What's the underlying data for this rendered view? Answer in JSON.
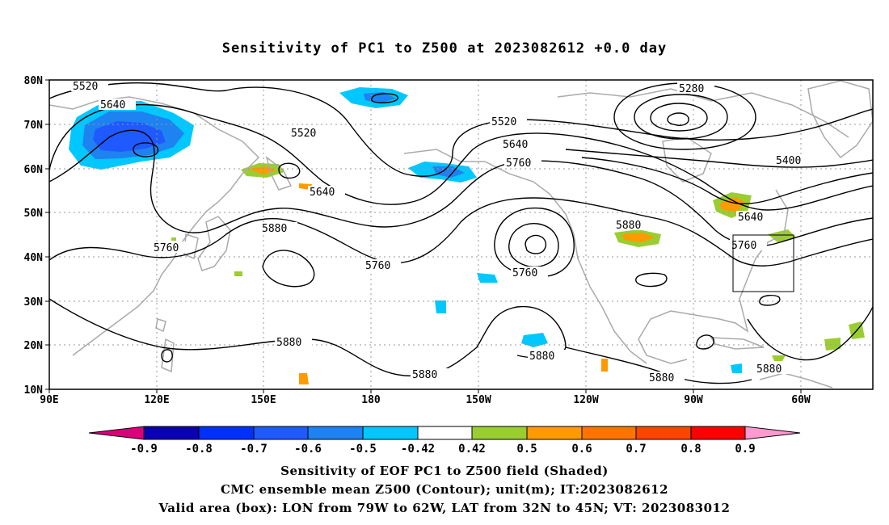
{
  "title": "Sensitivity of PC1 to Z500 at 2023082612 +0.0 day",
  "map": {
    "lat_labels": [
      "80N",
      "70N",
      "60N",
      "50N",
      "40N",
      "30N",
      "20N",
      "10N"
    ],
    "lon_labels": [
      "90E",
      "120E",
      "150E",
      "180",
      "150W",
      "120W",
      "90W",
      "60W"
    ],
    "contour_labels": [
      "5520",
      "5640",
      "5520",
      "5640",
      "5760",
      "5880",
      "5760",
      "5520",
      "5640",
      "5760",
      "5760",
      "5880",
      "5280",
      "5400",
      "5640",
      "5760",
      "5880",
      "5880",
      "5880",
      "5880",
      "5880"
    ],
    "valid_box": {
      "lon_from": "79W",
      "lon_to": "62W",
      "lat_from": "32N",
      "lat_to": "45N"
    }
  },
  "colorbar": {
    "labels": [
      "-0.9",
      "-0.8",
      "-0.7",
      "-0.6",
      "-0.5",
      "-0.42",
      "0.42",
      "0.5",
      "0.6",
      "0.7",
      "0.8",
      "0.9"
    ],
    "colors": [
      "#d9007a",
      "#0a00b4",
      "#0030ff",
      "#1e5aff",
      "#1e82f0",
      "#00c8ff",
      "#ffffff",
      "#9acd32",
      "#ff9a00",
      "#ff7400",
      "#ff4400",
      "#ff0000",
      "#ff9ad0"
    ]
  },
  "captions": {
    "line1": "Sensitivity of EOF PC1 to Z500 field (Shaded)",
    "line2": "CMC ensemble mean Z500 (Contour); unit(m); IT:2023082612",
    "line3": "Valid area (box): LON from 79W to 62W, LAT from 32N to 45N; VT: 2023083012"
  }
}
